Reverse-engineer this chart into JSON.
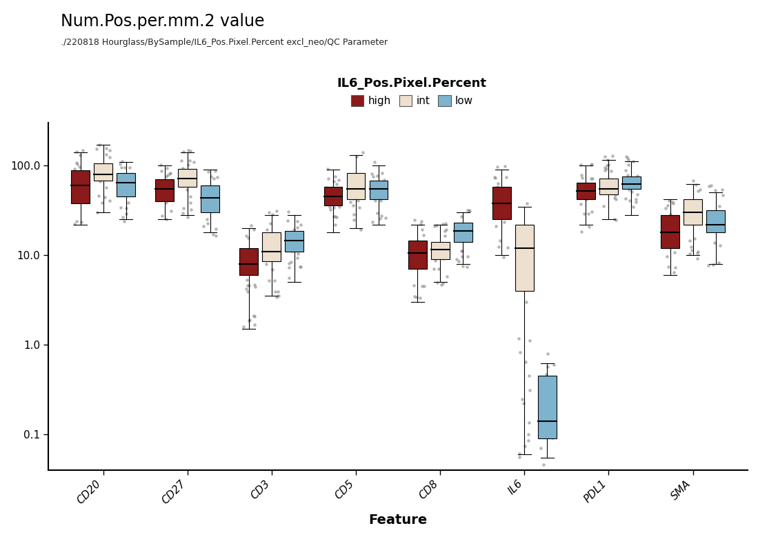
{
  "title": "Num.Pos.per.mm.2 value",
  "subtitle": "./220818 Hourglass/BySample/IL6_Pos.Pixel.Percent excl_neo/QC Parameter",
  "legend_title": "IL6_Pos.Pixel.Percent",
  "xlabel": "Feature",
  "ylabel": "",
  "features": [
    "CD20",
    "CD27",
    "CD3",
    "CD5",
    "CD8",
    "IL6",
    "PDL1",
    "SMA"
  ],
  "groups": [
    "high",
    "int",
    "low"
  ],
  "colors": {
    "high": "#8B1A1A",
    "int": "#EDE0CE",
    "low": "#7EB3CE"
  },
  "group_offsets": [
    -0.27,
    0.0,
    0.27
  ],
  "box_width": 0.22,
  "box_data": {
    "CD20": {
      "high": {
        "q1": 38,
        "median": 60,
        "q3": 88,
        "whislo": 22,
        "whishi": 140,
        "fliers": []
      },
      "int": {
        "q1": 68,
        "median": 80,
        "q3": 105,
        "whislo": 30,
        "whishi": 170,
        "fliers": []
      },
      "low": {
        "q1": 45,
        "median": 65,
        "q3": 82,
        "whislo": 25,
        "whishi": 110,
        "fliers": []
      }
    },
    "CD27": {
      "high": {
        "q1": 40,
        "median": 55,
        "q3": 70,
        "whislo": 25,
        "whishi": 100,
        "fliers": []
      },
      "int": {
        "q1": 58,
        "median": 72,
        "q3": 92,
        "whislo": 28,
        "whishi": 140,
        "fliers": []
      },
      "low": {
        "q1": 30,
        "median": 44,
        "q3": 60,
        "whislo": 18,
        "whishi": 90,
        "fliers": []
      }
    },
    "CD3": {
      "high": {
        "q1": 6.0,
        "median": 8.0,
        "q3": 12.0,
        "whislo": 1.5,
        "whishi": 20,
        "fliers": []
      },
      "int": {
        "q1": 8.5,
        "median": 11.0,
        "q3": 18.0,
        "whislo": 3.5,
        "whishi": 28,
        "fliers": []
      },
      "low": {
        "q1": 11.0,
        "median": 14.5,
        "q3": 18.5,
        "whislo": 5.0,
        "whishi": 28,
        "fliers": []
      }
    },
    "CD5": {
      "high": {
        "q1": 36,
        "median": 45,
        "q3": 58,
        "whislo": 18,
        "whishi": 90,
        "fliers": []
      },
      "int": {
        "q1": 42,
        "median": 55,
        "q3": 82,
        "whislo": 20,
        "whishi": 130,
        "fliers": []
      },
      "low": {
        "q1": 42,
        "median": 55,
        "q3": 68,
        "whislo": 22,
        "whishi": 100,
        "fliers": []
      }
    },
    "CD8": {
      "high": {
        "q1": 7.0,
        "median": 10.5,
        "q3": 14.5,
        "whislo": 3.0,
        "whishi": 22,
        "fliers": []
      },
      "int": {
        "q1": 9.0,
        "median": 11.5,
        "q3": 14.0,
        "whislo": 5.0,
        "whishi": 22,
        "fliers": []
      },
      "low": {
        "q1": 14.0,
        "median": 18.5,
        "q3": 23.0,
        "whislo": 8.0,
        "whishi": 30,
        "fliers": []
      }
    },
    "IL6": {
      "high": {
        "q1": 25,
        "median": 38,
        "q3": 58,
        "whislo": 10,
        "whishi": 90,
        "fliers": []
      },
      "int": {
        "q1": 4.0,
        "median": 12.0,
        "q3": 22.0,
        "whislo": 0.06,
        "whishi": 35,
        "fliers": []
      },
      "low": {
        "q1": 0.09,
        "median": 0.14,
        "q3": 0.45,
        "whislo": 0.055,
        "whishi": 0.62,
        "fliers": []
      }
    },
    "PDL1": {
      "high": {
        "q1": 42,
        "median": 52,
        "q3": 65,
        "whislo": 22,
        "whishi": 100,
        "fliers": []
      },
      "int": {
        "q1": 48,
        "median": 55,
        "q3": 72,
        "whislo": 25,
        "whishi": 115,
        "fliers": []
      },
      "low": {
        "q1": 55,
        "median": 62,
        "q3": 75,
        "whislo": 28,
        "whishi": 112,
        "fliers": []
      }
    },
    "SMA": {
      "high": {
        "q1": 12,
        "median": 18,
        "q3": 28,
        "whislo": 6,
        "whishi": 42,
        "fliers": []
      },
      "int": {
        "q1": 22,
        "median": 30,
        "q3": 42,
        "whislo": 10,
        "whishi": 62,
        "fliers": []
      },
      "low": {
        "q1": 18,
        "median": 22,
        "q3": 32,
        "whislo": 8,
        "whishi": 50,
        "fliers": []
      }
    }
  },
  "scatter_seed": 99,
  "scatter_n": 18,
  "scatter_ranges": {
    "CD20": {
      "high": [
        22,
        150
      ],
      "int": [
        28,
        180
      ],
      "low": [
        22,
        130
      ]
    },
    "CD27": {
      "high": [
        22,
        120
      ],
      "int": [
        25,
        160
      ],
      "low": [
        16,
        100
      ]
    },
    "CD3": {
      "high": [
        1.5,
        22
      ],
      "int": [
        3.0,
        32
      ],
      "low": [
        4.5,
        32
      ]
    },
    "CD5": {
      "high": [
        16,
        100
      ],
      "int": [
        18,
        140
      ],
      "low": [
        20,
        110
      ]
    },
    "CD8": {
      "high": [
        2.5,
        25
      ],
      "int": [
        4.0,
        25
      ],
      "low": [
        7.0,
        35
      ]
    },
    "IL6": {
      "high": [
        8,
        100
      ],
      "int": [
        0.05,
        45
      ],
      "low": [
        0.04,
        0.85
      ]
    },
    "PDL1": {
      "high": [
        18,
        110
      ],
      "int": [
        22,
        128
      ],
      "low": [
        26,
        128
      ]
    },
    "SMA": {
      "high": [
        5,
        50
      ],
      "int": [
        8,
        70
      ],
      "low": [
        7,
        62
      ]
    }
  },
  "ylim": [
    0.04,
    300
  ],
  "yticks": [
    0.1,
    1.0,
    10.0,
    100.0
  ],
  "yticklabels": [
    "0.1",
    "1.0",
    "10.0",
    "100.0"
  ],
  "background_color": "#FFFFFF",
  "title_fontsize": 17,
  "subtitle_fontsize": 9,
  "legend_fontsize": 11,
  "axis_fontsize": 12,
  "tick_fontsize": 11
}
